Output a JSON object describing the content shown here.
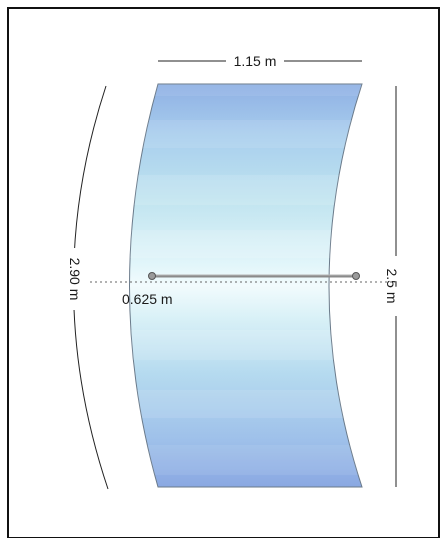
{
  "diagram": {
    "labels": {
      "top_width": "1.15 m",
      "arc_length": "2.90 m",
      "height": "2.5 m",
      "depth": "0.625 m"
    },
    "colors": {
      "panel_light": "#e8f7fb",
      "panel_mid": "#a9d4ea",
      "panel_dark": "#8fb0e4",
      "outline": "#6a7a8a",
      "rod": "#888888",
      "dimension_line": "#222222"
    }
  }
}
